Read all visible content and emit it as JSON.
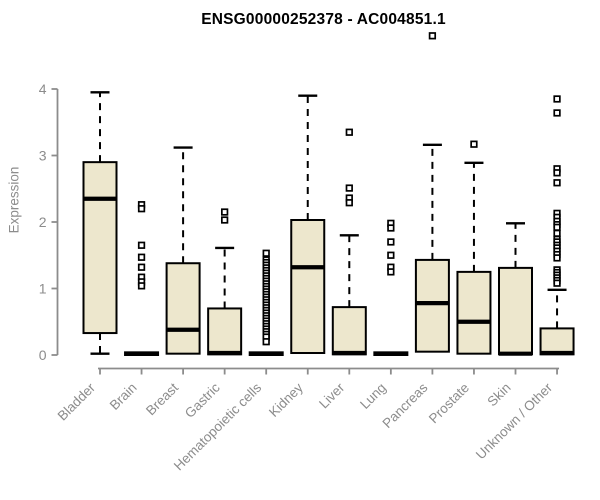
{
  "chart_data": {
    "type": "boxplot",
    "title": "ENSG00000252378 - AC004851.1",
    "xlabel": "",
    "ylabel": "Expression",
    "ylim": [
      0,
      4
    ],
    "yticks": [
      0,
      1,
      2,
      3,
      4
    ],
    "grid": false,
    "legend": null,
    "categories": [
      "Bladder",
      "Brain",
      "Breast",
      "Gastric",
      "Hematopoietic cells",
      "Kidney",
      "Liver",
      "Lung",
      "Pancreas",
      "Prostate",
      "Skin",
      "Unknown / Other"
    ],
    "boxes": [
      {
        "label": "Bladder",
        "whisker_low": 0.02,
        "q1": 0.33,
        "median": 2.35,
        "q3": 2.9,
        "whisker_high": 3.95,
        "outliers": []
      },
      {
        "label": "Brain",
        "whisker_low": 0.0,
        "q1": 0.0,
        "median": 0.02,
        "q3": 0.04,
        "whisker_high": 0.04,
        "outliers": [
          2.26,
          2.2,
          1.65,
          1.47,
          1.32,
          1.17,
          1.1,
          1.04
        ]
      },
      {
        "label": "Breast",
        "whisker_low": 0.02,
        "q1": 0.02,
        "median": 0.38,
        "q3": 1.38,
        "whisker_high": 3.12,
        "outliers": []
      },
      {
        "label": "Gastric",
        "whisker_low": 0.01,
        "q1": 0.01,
        "median": 0.03,
        "q3": 0.7,
        "whisker_high": 1.61,
        "outliers": [
          2.15,
          2.03
        ]
      },
      {
        "label": "Hematopoietic cells",
        "whisker_low": 0.0,
        "q1": 0.0,
        "median": 0.02,
        "q3": 0.04,
        "whisker_high": 0.04,
        "outliers": [
          1.53,
          1.43,
          1.39,
          1.35,
          1.31,
          1.27,
          1.23,
          1.19,
          1.15,
          1.11,
          1.07,
          1.03,
          0.99,
          0.95,
          0.91,
          0.87,
          0.83,
          0.79,
          0.75,
          0.71,
          0.67,
          0.63,
          0.59,
          0.55,
          0.51,
          0.47,
          0.43,
          0.39,
          0.35,
          0.31,
          0.27,
          0.2
        ]
      },
      {
        "label": "Kidney",
        "whisker_low": 0.03,
        "q1": 0.03,
        "median": 1.32,
        "q3": 2.03,
        "whisker_high": 3.9,
        "outliers": []
      },
      {
        "label": "Liver",
        "whisker_low": 0.01,
        "q1": 0.01,
        "median": 0.03,
        "q3": 0.72,
        "whisker_high": 1.8,
        "outliers": [
          3.35,
          2.51,
          2.36,
          2.29
        ]
      },
      {
        "label": "Lung",
        "whisker_low": 0.0,
        "q1": 0.0,
        "median": 0.02,
        "q3": 0.04,
        "whisker_high": 0.04,
        "outliers": [
          1.98,
          1.91,
          1.7,
          1.5,
          1.32,
          1.25
        ]
      },
      {
        "label": "Pancreas",
        "whisker_low": 0.05,
        "q1": 0.05,
        "median": 0.78,
        "q3": 1.43,
        "whisker_high": 3.16,
        "outliers": [
          4.8
        ]
      },
      {
        "label": "Prostate",
        "whisker_low": 0.02,
        "q1": 0.02,
        "median": 0.5,
        "q3": 1.25,
        "whisker_high": 2.89,
        "outliers": [
          3.17
        ]
      },
      {
        "label": "Skin",
        "whisker_low": 0.01,
        "q1": 0.01,
        "median": 0.02,
        "q3": 1.31,
        "whisker_high": 1.98,
        "outliers": []
      },
      {
        "label": "Unknown / Other",
        "whisker_low": 0.01,
        "q1": 0.01,
        "median": 0.03,
        "q3": 0.4,
        "whisker_high": 0.98,
        "outliers": [
          3.85,
          3.64,
          2.8,
          2.74,
          2.59,
          2.13,
          2.07,
          2.01,
          1.96,
          1.92,
          1.83,
          1.74,
          1.7,
          1.65,
          1.61,
          1.56,
          1.51,
          1.46,
          1.28,
          1.24,
          1.2,
          1.16,
          1.12,
          1.08
        ]
      }
    ],
    "colors": {
      "box_fill": "#ede7cd",
      "box_stroke": "#000000",
      "median_line": "#000000",
      "whisker": "#000000",
      "outlier_stroke": "#000000",
      "axis": "#8c8c8c",
      "tick_label": "#8c8c8c",
      "title": "#000000",
      "background": "#ffffff"
    }
  }
}
